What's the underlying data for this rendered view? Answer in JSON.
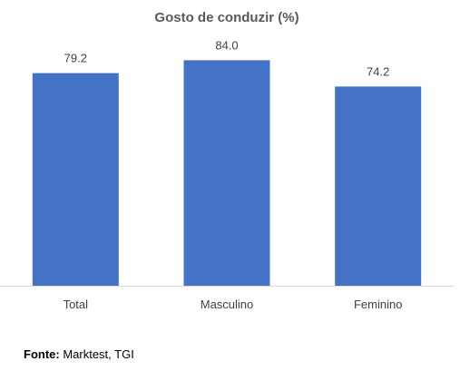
{
  "chart_data": {
    "type": "bar",
    "title": "Gosto de conduzir (%)",
    "categories": [
      "Total",
      "Masculino",
      "Feminino"
    ],
    "values": [
      79.2,
      84.0,
      74.2
    ],
    "value_labels": [
      "79.2",
      "84.0",
      "74.2"
    ],
    "xlabel": "",
    "ylabel": "",
    "ylim": [
      0,
      100
    ],
    "grid": false,
    "bar_color": "#4472C4",
    "source_label": "Fonte:",
    "source_text": " Marktest, TGI"
  }
}
